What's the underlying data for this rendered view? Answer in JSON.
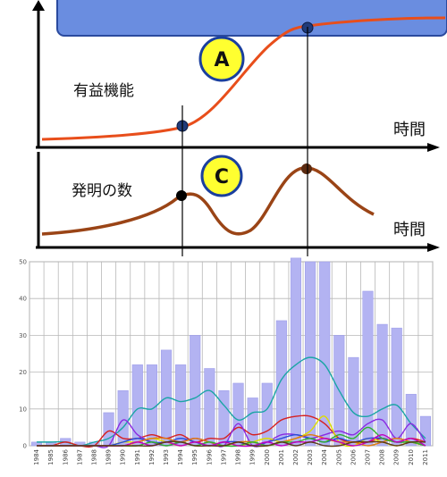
{
  "top_diagram": {
    "curve_a_label": "有益機能",
    "curve_c_label": "発明の数",
    "x_axis_label_a": "時間",
    "x_axis_label_c": "時間",
    "marker_a": "A",
    "marker_c": "C"
  },
  "chart_data": {
    "type": "bar",
    "categories": [
      "1984",
      "1985",
      "1986",
      "1987",
      "1988",
      "1989",
      "1990",
      "1991",
      "1992",
      "1993",
      "1994",
      "1995",
      "1996",
      "1997",
      "1998",
      "1999",
      "2000",
      "2001",
      "2002",
      "2003",
      "2004",
      "2005",
      "2006",
      "2007",
      "2008",
      "2009",
      "2010",
      "2011"
    ],
    "values": [
      1,
      1,
      2,
      1,
      1,
      9,
      15,
      22,
      22,
      26,
      22,
      30,
      21,
      15,
      17,
      13,
      17,
      34,
      51,
      50,
      50,
      30,
      24,
      42,
      33,
      32,
      14,
      8
    ],
    "ylim": [
      0,
      50
    ],
    "yticks": [
      0,
      10,
      20,
      30,
      40,
      50
    ],
    "grid": true,
    "lines": [
      {
        "color": "#1aa5a5",
        "values": [
          1,
          1,
          1,
          0,
          1,
          2,
          5,
          10,
          10,
          13,
          12,
          13,
          15,
          11,
          7,
          9,
          10,
          18,
          22,
          24,
          22,
          15,
          9,
          8,
          10,
          11,
          6,
          2
        ]
      },
      {
        "color": "#d62020",
        "values": [
          0,
          0,
          1,
          0,
          0,
          4,
          2,
          2,
          3,
          2,
          3,
          1,
          2,
          2,
          5,
          3,
          4,
          7,
          8,
          8,
          6,
          2,
          1,
          1,
          2,
          1,
          2,
          1
        ]
      },
      {
        "color": "#8a2be2",
        "values": [
          0,
          0,
          0,
          0,
          0,
          0,
          7,
          3,
          1,
          0,
          1,
          2,
          1,
          0,
          6,
          0,
          1,
          3,
          3,
          2,
          3,
          4,
          3,
          6,
          7,
          2,
          6,
          1
        ]
      },
      {
        "color": "#dddd00",
        "values": [
          0,
          0,
          0,
          0,
          0,
          0,
          1,
          1,
          2,
          1,
          0,
          1,
          0,
          1,
          0,
          1,
          2,
          1,
          2,
          4,
          8,
          1,
          0,
          2,
          1,
          0,
          1,
          0
        ]
      },
      {
        "color": "#2a4ed8",
        "values": [
          0,
          0,
          0,
          0,
          0,
          0,
          1,
          2,
          1,
          1,
          2,
          1,
          0,
          1,
          1,
          0,
          1,
          2,
          3,
          2,
          1,
          2,
          1,
          2,
          2,
          1,
          1,
          0
        ]
      },
      {
        "color": "#e07a10",
        "values": [
          0,
          0,
          0,
          0,
          0,
          0,
          0,
          1,
          2,
          2,
          1,
          2,
          1,
          0,
          1,
          1,
          0,
          1,
          2,
          3,
          2,
          1,
          1,
          0,
          1,
          2,
          1,
          0
        ]
      },
      {
        "color": "#30b030",
        "values": [
          0,
          0,
          0,
          0,
          0,
          0,
          0,
          0,
          1,
          0,
          1,
          0,
          1,
          0,
          0,
          1,
          0,
          1,
          1,
          2,
          1,
          3,
          2,
          5,
          2,
          1,
          1,
          0
        ]
      },
      {
        "color": "#c000c0",
        "values": [
          0,
          0,
          0,
          0,
          0,
          0,
          0,
          1,
          0,
          1,
          0,
          1,
          0,
          1,
          0,
          0,
          1,
          0,
          1,
          1,
          2,
          1,
          0,
          1,
          3,
          1,
          2,
          0
        ]
      },
      {
        "color": "#5b3a1a",
        "values": [
          0,
          0,
          0,
          0,
          0,
          0,
          0,
          0,
          0,
          1,
          1,
          0,
          0,
          0,
          1,
          0,
          0,
          1,
          0,
          1,
          0,
          0,
          1,
          1,
          1,
          0,
          1,
          1
        ]
      }
    ],
    "colors": {
      "bars": "#b3b3f2",
      "bar_edge": "#9a9ae8",
      "curve_a": "#e84e1b",
      "curve_c": "#9a4416",
      "marker_fill": "#ffff30",
      "header": "#6a8de0"
    }
  }
}
